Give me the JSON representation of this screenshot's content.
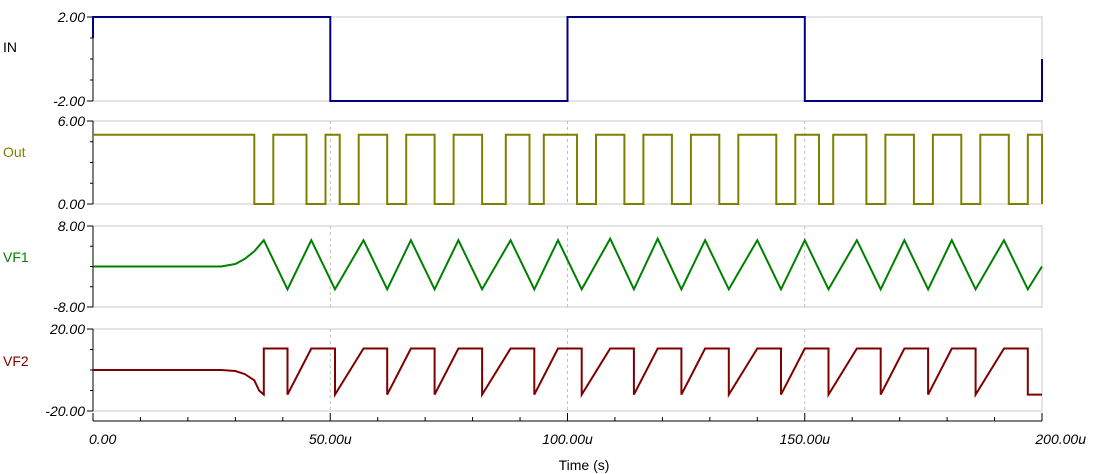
{
  "chart_data": {
    "type": "line",
    "x_unit_label": "Time (s)",
    "x_range": [
      0,
      200
    ],
    "x_ticks": [
      {
        "value": 0,
        "label": "0.00"
      },
      {
        "value": 50,
        "label": "50.00u"
      },
      {
        "value": 100,
        "label": "100.00u"
      },
      {
        "value": 150,
        "label": "150.00u"
      },
      {
        "value": 200,
        "label": "200.00u"
      }
    ],
    "grid": "vertical dashed at 50u, 100u, 150u",
    "panels": [
      {
        "name": "IN",
        "color": "#000080",
        "ylim": [
          -2,
          2
        ],
        "ytick_labels": [
          "2.00",
          "-2.00"
        ],
        "points": [
          [
            0,
            1
          ],
          [
            0,
            2
          ],
          [
            50,
            2
          ],
          [
            50,
            -2
          ],
          [
            100,
            -2
          ],
          [
            100,
            2
          ],
          [
            150,
            2
          ],
          [
            150,
            -2
          ],
          [
            200,
            -2
          ],
          [
            200,
            0
          ]
        ]
      },
      {
        "name": "Out",
        "color": "#808000",
        "ylim": [
          0,
          6
        ],
        "ytick_labels": [
          "6.00",
          "0.00"
        ],
        "high": 5,
        "low": 0,
        "initial_high_until": 34,
        "low_intervals": [
          [
            34,
            38
          ],
          [
            45,
            49
          ],
          [
            52,
            56
          ],
          [
            62,
            66
          ],
          [
            72,
            76
          ],
          [
            82,
            87
          ],
          [
            92,
            95
          ],
          [
            102,
            106
          ],
          [
            112,
            116
          ],
          [
            122,
            126
          ],
          [
            132,
            136
          ],
          [
            144,
            148
          ],
          [
            153,
            156
          ],
          [
            163,
            167
          ],
          [
            173,
            177
          ],
          [
            183,
            187
          ],
          [
            193,
            197
          ]
        ]
      },
      {
        "name": "VF1",
        "color": "#008000",
        "ylim": [
          -8,
          8
        ],
        "ytick_labels": [
          "8.00",
          "-8.00"
        ],
        "points": [
          [
            0,
            0
          ],
          [
            27,
            0
          ],
          [
            30,
            0.5
          ],
          [
            32,
            1.5
          ],
          [
            34,
            3
          ],
          [
            36,
            5.2
          ],
          [
            41,
            -4.5
          ],
          [
            46,
            5.2
          ],
          [
            51,
            -4.5
          ],
          [
            57,
            5.2
          ],
          [
            62,
            -4.5
          ],
          [
            67,
            5.2
          ],
          [
            72,
            -4.5
          ],
          [
            77,
            5.2
          ],
          [
            82,
            -4.5
          ],
          [
            88,
            5.2
          ],
          [
            93,
            -4.5
          ],
          [
            98,
            5.2
          ],
          [
            103,
            -4.5
          ],
          [
            109,
            5.5
          ],
          [
            114,
            -4.5
          ],
          [
            119,
            5.5
          ],
          [
            124,
            -4.5
          ],
          [
            129,
            5.2
          ],
          [
            134,
            -4.5
          ],
          [
            140,
            5.2
          ],
          [
            145,
            -4.5
          ],
          [
            150,
            5.2
          ],
          [
            155,
            -4.5
          ],
          [
            161,
            5.2
          ],
          [
            166,
            -4.5
          ],
          [
            171,
            5.2
          ],
          [
            176,
            -4.5
          ],
          [
            181,
            5.2
          ],
          [
            186,
            -4.5
          ],
          [
            192,
            5.2
          ],
          [
            197,
            -4.5
          ],
          [
            200,
            0
          ]
        ]
      },
      {
        "name": "VF2",
        "color": "#800000",
        "ylim": [
          -20,
          20
        ],
        "ytick_labels": [
          "20.00",
          "-20.00"
        ],
        "high": 10.5,
        "low": -12,
        "initial_level": 0,
        "points": [
          [
            0,
            0
          ],
          [
            27,
            0
          ],
          [
            30,
            -0.5
          ],
          [
            32,
            -2
          ],
          [
            34,
            -5
          ],
          [
            35,
            -10
          ],
          [
            36,
            -12
          ],
          [
            36,
            10.5
          ],
          [
            41,
            10.5
          ],
          [
            41,
            -12
          ],
          [
            46,
            10.5
          ],
          [
            51,
            10.5
          ],
          [
            51,
            -12
          ],
          [
            57,
            10.5
          ],
          [
            62,
            10.5
          ],
          [
            62,
            -12
          ],
          [
            67,
            10.5
          ],
          [
            72,
            10.5
          ],
          [
            72,
            -12
          ],
          [
            77,
            10.5
          ],
          [
            82,
            10.5
          ],
          [
            82,
            -12
          ],
          [
            88,
            10.5
          ],
          [
            93,
            10.5
          ],
          [
            93,
            -12
          ],
          [
            98,
            10.5
          ],
          [
            103,
            10.5
          ],
          [
            103,
            -12
          ],
          [
            109,
            10.5
          ],
          [
            114,
            10.5
          ],
          [
            114,
            -12
          ],
          [
            119,
            10.5
          ],
          [
            124,
            10.5
          ],
          [
            124,
            -12
          ],
          [
            129,
            10.5
          ],
          [
            134,
            10.5
          ],
          [
            134,
            -12
          ],
          [
            140,
            10.5
          ],
          [
            145,
            10.5
          ],
          [
            145,
            -12
          ],
          [
            150,
            10.5
          ],
          [
            155,
            10.5
          ],
          [
            155,
            -12
          ],
          [
            161,
            10.5
          ],
          [
            166,
            10.5
          ],
          [
            166,
            -12
          ],
          [
            171,
            10.5
          ],
          [
            176,
            10.5
          ],
          [
            176,
            -12
          ],
          [
            181,
            10.5
          ],
          [
            186,
            10.5
          ],
          [
            186,
            -12
          ],
          [
            192,
            10.5
          ],
          [
            197,
            10.5
          ],
          [
            197,
            -12
          ],
          [
            200,
            -12
          ]
        ]
      }
    ]
  }
}
